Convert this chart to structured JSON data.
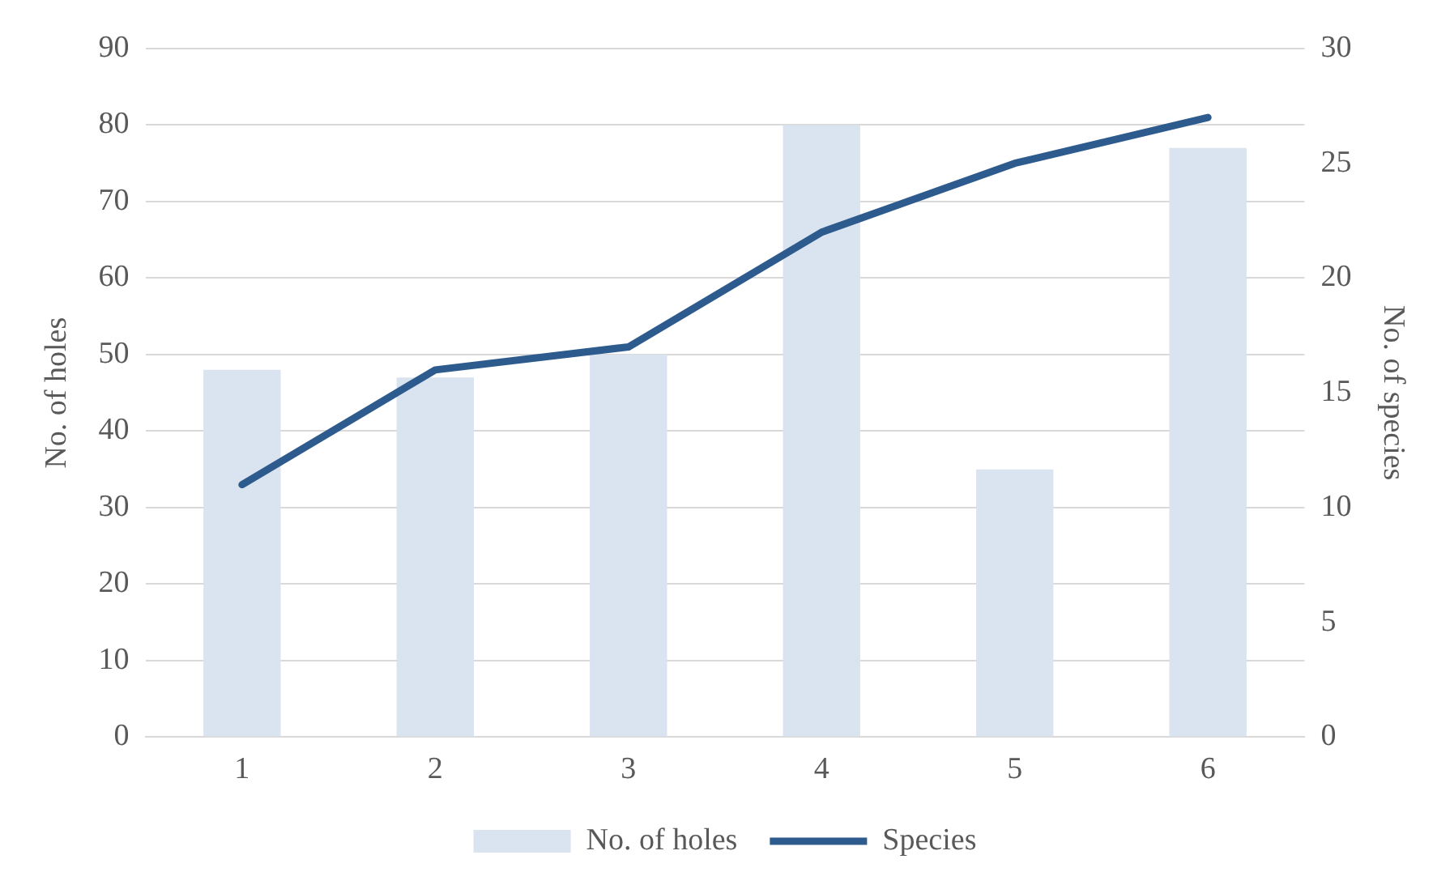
{
  "chart_data": {
    "type": "bar",
    "categories": [
      "1",
      "2",
      "3",
      "4",
      "5",
      "6"
    ],
    "series": [
      {
        "name": "No. of holes",
        "color": "#dae3f0",
        "values": [
          48,
          47,
          50,
          80,
          35,
          77
        ]
      },
      {
        "name": "Species",
        "type": "line",
        "axis": "y2",
        "color": "#2e5b8e",
        "values": [
          11,
          16,
          17,
          22,
          25,
          27
        ]
      }
    ],
    "ylabel": "No. of holes",
    "y2label": "No. of species",
    "ylim": [
      0,
      90
    ],
    "yticks": [
      0,
      10,
      20,
      30,
      40,
      50,
      60,
      70,
      80,
      90
    ],
    "y2lim": [
      0,
      30
    ],
    "y2ticks": [
      0,
      5,
      10,
      15,
      20,
      25,
      30
    ],
    "grid": "y",
    "legend": "bottom"
  }
}
